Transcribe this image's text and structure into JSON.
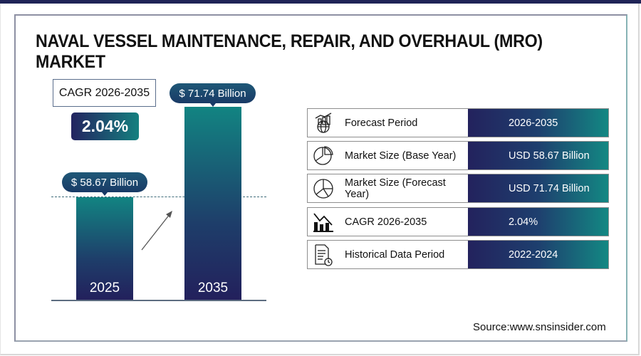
{
  "title": "NAVAL VESSEL MAINTENANCE, REPAIR, AND OVERHAUL (MRO) MARKET",
  "cagr": {
    "label": "CAGR 2026-2035",
    "value": "2.04%"
  },
  "bars": [
    {
      "year": "2025",
      "label": "$ 58.67 Billion",
      "value": 58.67
    },
    {
      "year": "2035",
      "label": "$ 71.74 Billion",
      "value": 71.74
    }
  ],
  "table": [
    {
      "icon": "chart-globe-icon",
      "label": "Forecast Period",
      "value": "2026-2035"
    },
    {
      "icon": "pie-chart-icon",
      "label": "Market Size (Base Year)",
      "value": "USD 58.67 Billion"
    },
    {
      "icon": "pie-chart-icon",
      "label": "Market Size (Forecast Year)",
      "value": "USD 71.74 Billion"
    },
    {
      "icon": "bar-chart-trend-icon",
      "label": "CAGR 2026-2035",
      "value": "2.04%"
    },
    {
      "icon": "document-clock-icon",
      "label": "Historical Data Period",
      "value": "2022-2024"
    }
  ],
  "source": "Source:www.snsinsider.com",
  "colors": {
    "navy": "#23225d",
    "teal": "#138883"
  }
}
